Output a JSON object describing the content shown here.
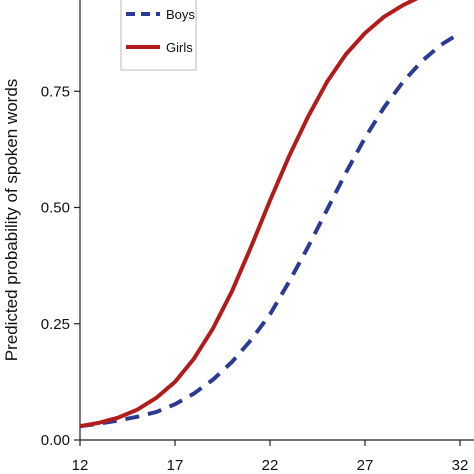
{
  "chart_data": {
    "type": "line",
    "title": "",
    "xlabel": "",
    "ylabel": "Predicted probability of spoken words",
    "xlim": [
      12,
      32
    ],
    "ylim": [
      0,
      1
    ],
    "x_ticks": [
      12,
      17,
      22,
      27,
      32
    ],
    "y_ticks": [
      0,
      0.25,
      0.5,
      0.75
    ],
    "y_tick_labels": [
      "0.00",
      "0.25",
      "0.50",
      "0.75"
    ],
    "grid": false,
    "legend": {
      "position": "top-left",
      "boxed": true
    },
    "series": [
      {
        "name": "Boys",
        "color": "#2b3a93",
        "line_style": "dashed",
        "x": [
          12,
          13,
          14,
          15,
          16,
          17,
          18,
          19,
          20,
          21,
          22,
          23,
          24,
          25,
          26,
          27,
          28,
          29,
          30,
          31,
          32
        ],
        "y": [
          0.03,
          0.035,
          0.042,
          0.05,
          0.06,
          0.077,
          0.1,
          0.13,
          0.168,
          0.215,
          0.27,
          0.34,
          0.415,
          0.495,
          0.575,
          0.65,
          0.715,
          0.77,
          0.815,
          0.85,
          0.875
        ]
      },
      {
        "name": "Girls",
        "color": "#b31b1b",
        "line_style": "solid",
        "x": [
          12,
          13,
          14,
          15,
          16,
          17,
          18,
          19,
          20,
          21,
          22,
          23,
          24,
          25,
          26,
          27,
          28,
          29,
          30,
          31,
          32
        ],
        "y": [
          0.03,
          0.037,
          0.048,
          0.065,
          0.09,
          0.125,
          0.175,
          0.24,
          0.32,
          0.415,
          0.515,
          0.61,
          0.695,
          0.77,
          0.83,
          0.875,
          0.91,
          0.935,
          0.955,
          0.97,
          0.98
        ]
      }
    ]
  }
}
